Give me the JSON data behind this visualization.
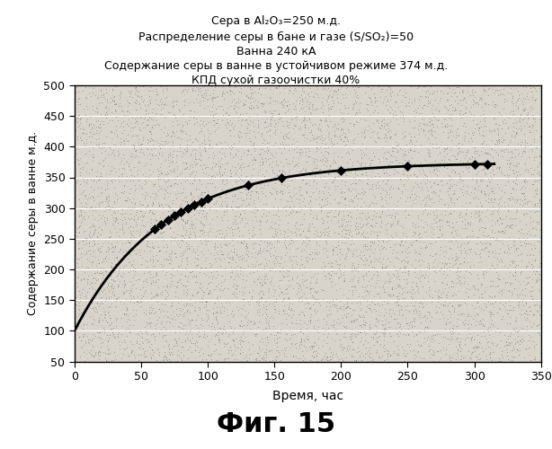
{
  "title_lines": [
    "Сера в Al₂O₃=250 м.д.",
    "Распределение серы в бане и газе (S/SO₂)=50",
    "Ванна 240 кА",
    "Содержание серы в ванне в устойчивом режиме 374 м.д.",
    "КПД сухой газоочистки 40%"
  ],
  "xlabel": "Время, час",
  "ylabel": "Содержание серы в ванне м.д.",
  "xlim": [
    0,
    350
  ],
  "ylim": [
    50,
    500
  ],
  "xticks": [
    0,
    50,
    100,
    150,
    200,
    250,
    300,
    350
  ],
  "yticks": [
    50,
    100,
    150,
    200,
    250,
    300,
    350,
    400,
    450,
    500
  ],
  "steady_state": 374,
  "initial_value": 100,
  "tau": 65,
  "marker_x": [
    60,
    65,
    70,
    75,
    80,
    85,
    90,
    95,
    100,
    130,
    155,
    200,
    250,
    300,
    310
  ],
  "fig_label": "Фиг. 15",
  "fig_bg_color": "#ffffff",
  "plot_bg_color": "#d8d4cc",
  "line_color": "#000000",
  "marker_color": "#000000",
  "grid_color": "#ffffff",
  "noise_color": "#555550",
  "noise_count": 8000
}
